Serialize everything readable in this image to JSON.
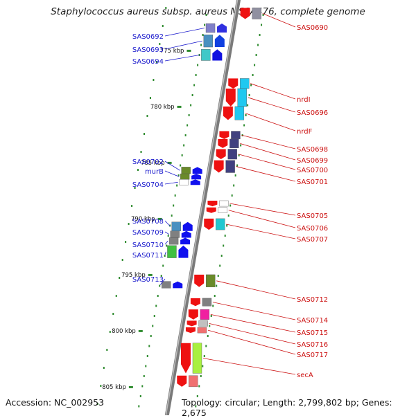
{
  "title": "Staphylococcus aureus subsp. aureus MSSA476, complete genome",
  "footer": {
    "accession": "Accession: NC_002953",
    "summary": "Topology: circular; Length: 2,799,802 bp; Genes: 2,675"
  },
  "colors": {
    "reverse_label": "#1a1acc",
    "forward_label": "#cc1111",
    "tick": "#2e8b2e",
    "backbone": "#888888"
  },
  "ticks": [
    {
      "label": "775 kbp",
      "kbp": 775
    },
    {
      "label": "780 kbp",
      "kbp": 780
    },
    {
      "label": "785 kbp",
      "kbp": 785
    },
    {
      "label": "790 kbp",
      "kbp": 790
    },
    {
      "label": "795 kbp",
      "kbp": 795
    },
    {
      "label": "800 kbp",
      "kbp": 800
    },
    {
      "label": "805 kbp",
      "kbp": 805
    }
  ],
  "reverse_genes": [
    {
      "label": "SAS0692",
      "start": 772.6,
      "end": 773.4,
      "color": "#8080c8",
      "fill": "#3030e0"
    },
    {
      "label": "SAS0693",
      "start": 773.6,
      "end": 774.7,
      "color": "#4a90c0",
      "fill": "#1040e0"
    },
    {
      "label": "SAS0694",
      "start": 774.9,
      "end": 775.9,
      "color": "#40c8c8",
      "fill": "#1010e0"
    },
    {
      "label": "SAS0702",
      "start": 785.4,
      "end": 786.0,
      "color": "#6a8a2a",
      "fill": "#1010ee"
    },
    {
      "label": "murB",
      "start": 786.0,
      "end": 786.5,
      "color": "#6a8a2a",
      "fill": "#1010ee"
    },
    {
      "label": "SAS0704",
      "start": 786.5,
      "end": 787.0,
      "color": "#ffffff",
      "fill": "#1010ee"
    },
    {
      "label": "SAS0708",
      "start": 790.3,
      "end": 791.1,
      "color": "#4a90c0",
      "fill": "#1010ee"
    },
    {
      "label": "SAS0709",
      "start": 791.1,
      "end": 791.7,
      "color": "#808080",
      "fill": "#1010ee"
    },
    {
      "label": "SAS0710",
      "start": 791.7,
      "end": 792.3,
      "color": "#808080",
      "fill": "#1010ee"
    },
    {
      "label": "SAS0711",
      "start": 792.4,
      "end": 793.5,
      "color": "#40c040",
      "fill": "#1010ee"
    },
    {
      "label": "SAS0713",
      "start": 795.6,
      "end": 796.2,
      "color": "#808080",
      "fill": "#1010ee"
    }
  ],
  "forward_genes": [
    {
      "label": "SAS0690",
      "start": 771.2,
      "end": 772.2,
      "color": "#9090a0",
      "fill": "#ee1111"
    },
    {
      "label": "nrdI",
      "start": 777.5,
      "end": 778.4,
      "color": "#20c8f0",
      "fill": "#ee1111"
    },
    {
      "label": "SAS0696",
      "start": 778.4,
      "end": 780.0,
      "color": "#20c8f0",
      "fill": "#ee1111"
    },
    {
      "label": "nrdF",
      "start": 780.0,
      "end": 781.2,
      "color": "#20c8f0",
      "fill": "#ee1111"
    },
    {
      "label": "SAS0698",
      "start": 782.2,
      "end": 782.9,
      "color": "#404080",
      "fill": "#ee1111"
    },
    {
      "label": "SAS0699",
      "start": 782.9,
      "end": 783.7,
      "color": "#404080",
      "fill": "#ee1111"
    },
    {
      "label": "SAS0700",
      "start": 783.8,
      "end": 784.7,
      "color": "#404080",
      "fill": "#ee1111"
    },
    {
      "label": "SAS0701",
      "start": 784.8,
      "end": 785.9,
      "color": "#404080",
      "fill": "#ee1111"
    },
    {
      "label": "SAS0705",
      "start": 788.4,
      "end": 788.9,
      "color": "#ffffff",
      "fill": "#ee1111"
    },
    {
      "label": "SAS0706",
      "start": 789.0,
      "end": 789.5,
      "color": "#ffffff",
      "fill": "#ee1111"
    },
    {
      "label": "SAS0707",
      "start": 790.0,
      "end": 791.0,
      "color": "#20c8d0",
      "fill": "#ee1111"
    },
    {
      "label": "SAS0712",
      "start": 795.0,
      "end": 796.1,
      "color": "#6a8a2a",
      "fill": "#ee1111"
    },
    {
      "label": "SAS0714",
      "start": 797.1,
      "end": 797.8,
      "color": "#808080",
      "fill": "#ee1111"
    },
    {
      "label": "SAS0715",
      "start": 798.1,
      "end": 799.0,
      "color": "#f020a0",
      "fill": "#ee1111"
    },
    {
      "label": "SAS0716",
      "start": 799.1,
      "end": 799.6,
      "color": "#c0c0c0",
      "fill": "#ee1111"
    },
    {
      "label": "SAS0717",
      "start": 799.7,
      "end": 800.2,
      "color": "#f07070",
      "fill": "#ee1111"
    },
    {
      "label": "secA",
      "start": 801.1,
      "end": 803.8,
      "color": "#a8f040",
      "fill": "#ee1111"
    },
    {
      "label": "",
      "start": 804.0,
      "end": 805.0,
      "color": "#f07070",
      "fill": "#ee1111"
    }
  ]
}
